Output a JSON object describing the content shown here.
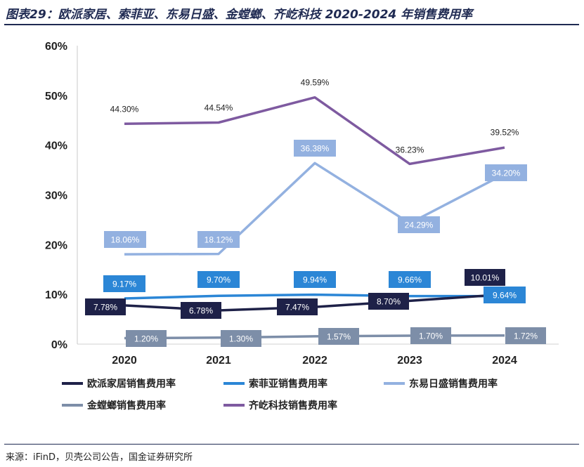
{
  "title": "图表29：欧派家居、索菲亚、东易日盛、金螳螂、齐屹科技 2020-2024 年销售费用率",
  "source": "来源：iFinD，贝壳公司公告，国金证券研究所",
  "chart_data": {
    "type": "line",
    "x": [
      "2020",
      "2021",
      "2022",
      "2023",
      "2024"
    ],
    "ylim": [
      0,
      60
    ],
    "yticks": [
      "0%",
      "10%",
      "20%",
      "30%",
      "40%",
      "50%",
      "60%"
    ],
    "grid": false,
    "legend_position": "bottom",
    "series": [
      {
        "name": "欧派家居销售费用率",
        "color": "#1e2148",
        "values": [
          7.78,
          6.78,
          7.47,
          8.7,
          10.01
        ],
        "labels": [
          "7.78%",
          "6.78%",
          "7.47%",
          "8.70%",
          "10.01%"
        ]
      },
      {
        "name": "索菲亚销售费用率",
        "color": "#2b86d6",
        "values": [
          9.17,
          9.7,
          9.94,
          9.66,
          9.64
        ],
        "labels": [
          "9.17%",
          "9.70%",
          "9.94%",
          "9.66%",
          "9.64%"
        ]
      },
      {
        "name": "东易日盛销售费用率",
        "color": "#93b1e0",
        "values": [
          18.06,
          18.12,
          36.38,
          24.29,
          34.2
        ],
        "labels": [
          "18.06%",
          "18.12%",
          "36.38%",
          "24.29%",
          "34.20%"
        ]
      },
      {
        "name": "金螳螂销售费用率",
        "color": "#7d8ea8",
        "values": [
          1.2,
          1.3,
          1.57,
          1.7,
          1.72
        ],
        "labels": [
          "1.20%",
          "1.30%",
          "1.57%",
          "1.70%",
          "1.72%"
        ]
      },
      {
        "name": "齐屹科技销售费用率",
        "color": "#7e5aa0",
        "values": [
          44.3,
          44.54,
          49.59,
          36.23,
          39.52
        ],
        "labels": [
          "44.30%",
          "44.54%",
          "49.59%",
          "36.23%",
          "39.52%"
        ]
      }
    ]
  }
}
